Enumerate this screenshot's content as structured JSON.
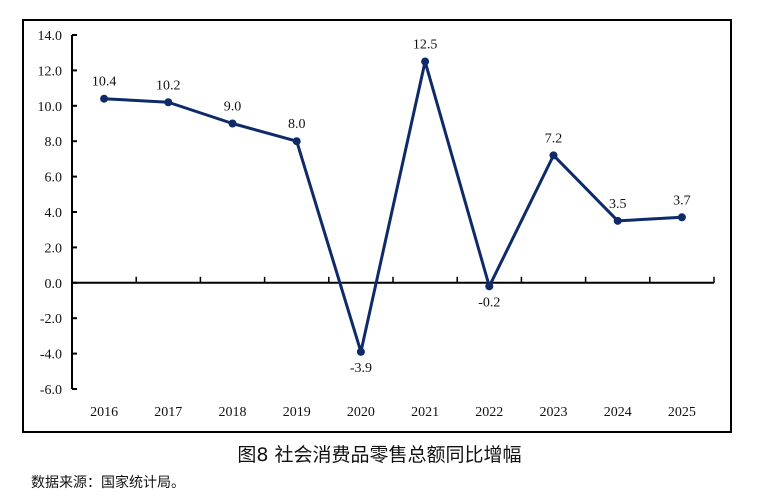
{
  "chart_data": {
    "type": "line",
    "title": "图8  社会消费品零售总额同比增幅",
    "source": "数据来源：国家统计局。",
    "categories": [
      "2016",
      "2017",
      "2018",
      "2019",
      "2020",
      "2021",
      "2022",
      "2023",
      "2024",
      "2025"
    ],
    "values": [
      10.4,
      10.2,
      9.0,
      8.0,
      -3.9,
      12.5,
      -0.2,
      7.2,
      3.5,
      3.7
    ],
    "data_labels": [
      "10.4",
      "10.2",
      "9.0",
      "8.0",
      "-3.9",
      "12.5",
      "-0.2",
      "7.2",
      "3.5",
      "3.7"
    ],
    "ylim": [
      -6,
      14
    ],
    "yticks": [
      "-6.0",
      "-4.0",
      "-2.0",
      "0.0",
      "2.0",
      "4.0",
      "6.0",
      "8.0",
      "10.0",
      "12.0",
      "14.0"
    ],
    "xlabel": "",
    "ylabel": "",
    "grid": false,
    "line_color": "#0e2a68",
    "markers": true
  }
}
